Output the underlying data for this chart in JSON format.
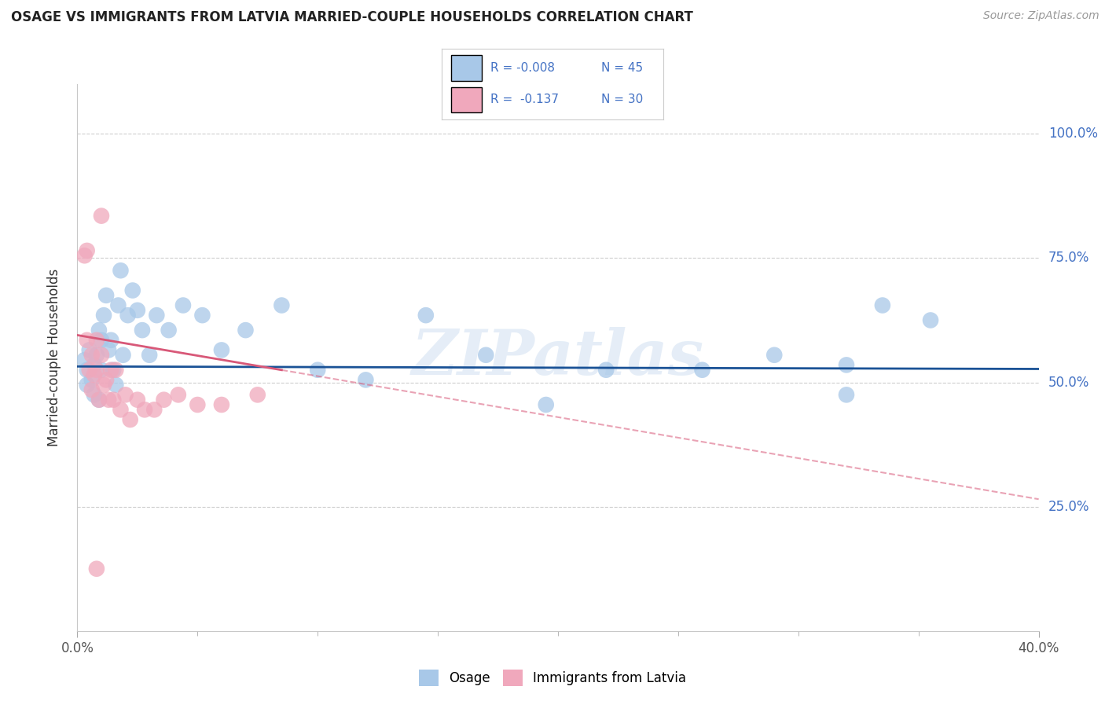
{
  "title": "OSAGE VS IMMIGRANTS FROM LATVIA MARRIED-COUPLE HOUSEHOLDS CORRELATION CHART",
  "source": "Source: ZipAtlas.com",
  "ylabel": "Married-couple Households",
  "legend_blue_R": "R = -0.008",
  "legend_blue_N": "N = 45",
  "legend_pink_R": "R =  -0.137",
  "legend_pink_N": "N = 30",
  "legend_label_blue": "Osage",
  "legend_label_pink": "Immigrants from Latvia",
  "blue_color": "#a8c8e8",
  "pink_color": "#f0a8bc",
  "blue_line_color": "#1a5296",
  "pink_line_color": "#d85878",
  "text_color_blue": "#4472c4",
  "background_color": "#ffffff",
  "grid_color": "#c8c8c8",
  "watermark": "ZIPatlas",
  "xlim": [
    0.0,
    0.4
  ],
  "ylim": [
    0.0,
    1.1
  ],
  "yticks": [
    0.25,
    0.5,
    0.75,
    1.0
  ],
  "ytick_labels": [
    "25.0%",
    "50.0%",
    "75.0%",
    "100.0%"
  ],
  "blue_dots_x": [
    0.003,
    0.004,
    0.004,
    0.005,
    0.006,
    0.007,
    0.007,
    0.008,
    0.009,
    0.009,
    0.01,
    0.01,
    0.011,
    0.012,
    0.013,
    0.014,
    0.015,
    0.016,
    0.017,
    0.018,
    0.019,
    0.021,
    0.023,
    0.025,
    0.027,
    0.03,
    0.033,
    0.038,
    0.044,
    0.052,
    0.06,
    0.07,
    0.085,
    0.1,
    0.12,
    0.145,
    0.17,
    0.195,
    0.22,
    0.26,
    0.29,
    0.32,
    0.335,
    0.355,
    0.32
  ],
  "blue_dots_y": [
    0.545,
    0.525,
    0.495,
    0.565,
    0.505,
    0.475,
    0.535,
    0.555,
    0.465,
    0.605,
    0.585,
    0.525,
    0.635,
    0.675,
    0.565,
    0.585,
    0.525,
    0.495,
    0.655,
    0.725,
    0.555,
    0.635,
    0.685,
    0.645,
    0.605,
    0.555,
    0.635,
    0.605,
    0.655,
    0.635,
    0.565,
    0.605,
    0.655,
    0.525,
    0.505,
    0.635,
    0.555,
    0.455,
    0.525,
    0.525,
    0.555,
    0.535,
    0.655,
    0.625,
    0.475
  ],
  "pink_dots_x": [
    0.003,
    0.004,
    0.004,
    0.005,
    0.006,
    0.006,
    0.007,
    0.008,
    0.008,
    0.009,
    0.01,
    0.011,
    0.012,
    0.013,
    0.014,
    0.015,
    0.016,
    0.018,
    0.02,
    0.022,
    0.025,
    0.028,
    0.032,
    0.036,
    0.042,
    0.05,
    0.06,
    0.075,
    0.01,
    0.008
  ],
  "pink_dots_y": [
    0.755,
    0.765,
    0.585,
    0.525,
    0.485,
    0.555,
    0.515,
    0.585,
    0.525,
    0.465,
    0.555,
    0.495,
    0.505,
    0.465,
    0.525,
    0.465,
    0.525,
    0.445,
    0.475,
    0.425,
    0.465,
    0.445,
    0.445,
    0.465,
    0.475,
    0.455,
    0.455,
    0.475,
    0.835,
    0.125
  ],
  "blue_trend_x": [
    0.0,
    0.4
  ],
  "blue_trend_y": [
    0.532,
    0.527
  ],
  "pink_trend_x": [
    0.0,
    0.4
  ],
  "pink_trend_y": [
    0.595,
    0.265
  ]
}
